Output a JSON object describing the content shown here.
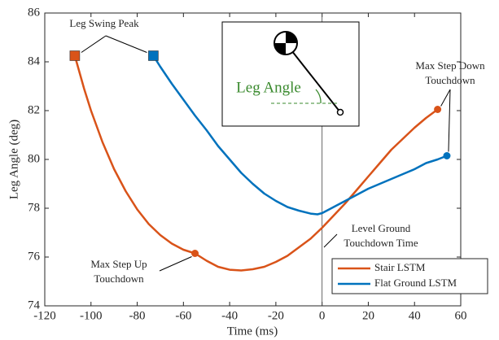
{
  "chart_data": {
    "type": "line",
    "xlabel": "Time (ms)",
    "ylabel": "Leg Angle (deg)",
    "xlim": [
      -120,
      60
    ],
    "ylim": [
      74,
      86
    ],
    "xticks": [
      -120,
      -100,
      -80,
      -60,
      -40,
      -20,
      0,
      20,
      40,
      60
    ],
    "yticks": [
      74,
      76,
      78,
      80,
      82,
      84,
      86
    ],
    "vline_x": 0,
    "legend": "lower right",
    "series": [
      {
        "name": "Stair LSTM",
        "color": "#d95319",
        "x": [
          -107,
          -103,
          -100,
          -95,
          -90,
          -85,
          -80,
          -75,
          -70,
          -65,
          -60,
          -55,
          -50,
          -45,
          -40,
          -35,
          -30,
          -25,
          -20,
          -15,
          -10,
          -5,
          0,
          5,
          10,
          15,
          20,
          25,
          30,
          35,
          40,
          45,
          50
        ],
        "values": [
          84.25,
          82.9,
          82.0,
          80.7,
          79.6,
          78.7,
          77.95,
          77.35,
          76.9,
          76.55,
          76.3,
          76.15,
          75.85,
          75.6,
          75.48,
          75.45,
          75.5,
          75.6,
          75.8,
          76.05,
          76.4,
          76.75,
          77.2,
          77.7,
          78.2,
          78.75,
          79.3,
          79.85,
          80.4,
          80.85,
          81.3,
          81.7,
          82.05
        ],
        "markers": [
          "square",
          null,
          null,
          null,
          null,
          null,
          null,
          null,
          null,
          null,
          null,
          "circle",
          null,
          null,
          null,
          null,
          null,
          null,
          null,
          null,
          null,
          null,
          null,
          null,
          null,
          null,
          null,
          null,
          null,
          null,
          null,
          null,
          "circle"
        ]
      },
      {
        "name": "Flat Ground LSTM",
        "color": "#0072bd",
        "x": [
          -73,
          -70,
          -65,
          -60,
          -55,
          -50,
          -45,
          -40,
          -35,
          -30,
          -25,
          -20,
          -15,
          -10,
          -5,
          -2,
          0,
          5,
          10,
          15,
          20,
          25,
          30,
          35,
          40,
          45,
          50,
          54
        ],
        "values": [
          84.25,
          83.8,
          83.1,
          82.45,
          81.8,
          81.2,
          80.55,
          80.0,
          79.45,
          79.0,
          78.6,
          78.3,
          78.05,
          77.9,
          77.78,
          77.75,
          77.8,
          78.05,
          78.3,
          78.55,
          78.8,
          79.0,
          79.2,
          79.4,
          79.6,
          79.85,
          80.0,
          80.15
        ],
        "markers": [
          "square",
          null,
          null,
          null,
          null,
          null,
          null,
          null,
          null,
          null,
          null,
          null,
          null,
          null,
          null,
          null,
          null,
          null,
          null,
          null,
          null,
          null,
          null,
          null,
          null,
          null,
          null,
          "circle"
        ]
      }
    ],
    "annotations": {
      "swing_peak": [
        "Leg Swing Peak"
      ],
      "step_down": [
        "Max Step Down",
        "Touchdown"
      ],
      "step_up": [
        "Max Step Up",
        "Touchdown"
      ],
      "level_ground": [
        "Level Ground",
        "Touchdown Time"
      ]
    },
    "inset_label": "Leg Angle"
  }
}
